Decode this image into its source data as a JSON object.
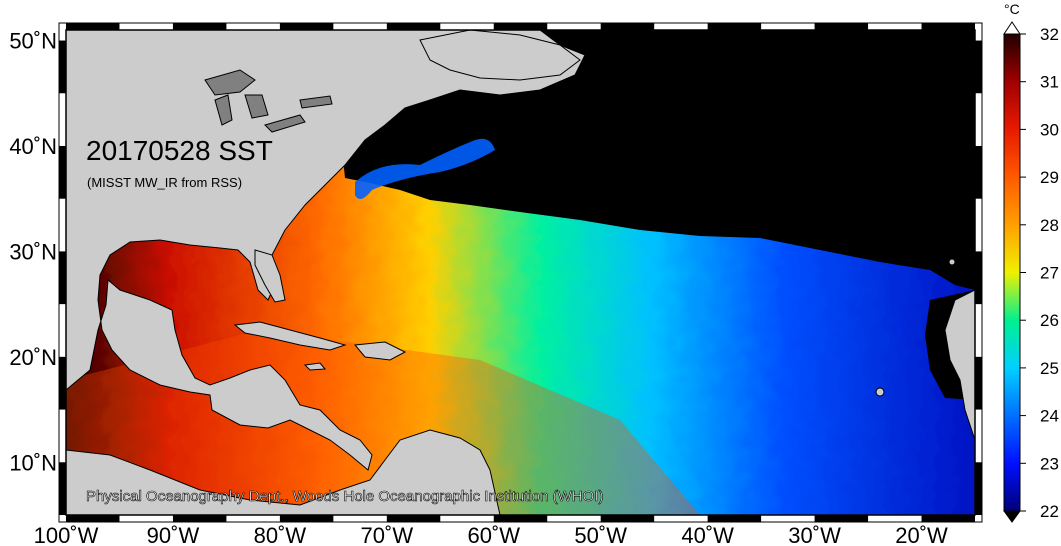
{
  "map": {
    "title": "20170528 SST",
    "subtitle": "(MISST MW_IR from RSS)",
    "credit": "Physical Oceanography Dept., Woods Hole Oceanographic Institution (WHOI)",
    "extent": {
      "lon_min": -100,
      "lon_max": -15,
      "lat_min": 5,
      "lat_max": 51
    },
    "lat_ticks": [
      {
        "value": 10,
        "label": "10˚N"
      },
      {
        "value": 20,
        "label": "20˚N"
      },
      {
        "value": 30,
        "label": "30˚N"
      },
      {
        "value": 40,
        "label": "40˚N"
      },
      {
        "value": 50,
        "label": "50˚N"
      }
    ],
    "lon_ticks": [
      {
        "value": -100,
        "label": "100˚W"
      },
      {
        "value": -90,
        "label": "90˚W"
      },
      {
        "value": -80,
        "label": "80˚W"
      },
      {
        "value": -70,
        "label": "70˚W"
      },
      {
        "value": -60,
        "label": "60˚W"
      },
      {
        "value": -50,
        "label": "50˚W"
      },
      {
        "value": -40,
        "label": "40˚W"
      },
      {
        "value": -30,
        "label": "30˚W"
      },
      {
        "value": -20,
        "label": "20˚W"
      }
    ],
    "colors": {
      "land": "#cccccc",
      "coastline": "#000000",
      "lakes": "#808080",
      "no_data": "#000000",
      "frame": "#000000"
    }
  },
  "colorbar": {
    "unit": "°C",
    "min": 22,
    "max": 32,
    "ticks": [
      {
        "value": 32,
        "label": "32"
      },
      {
        "value": 31,
        "label": "31"
      },
      {
        "value": 30,
        "label": "30"
      },
      {
        "value": 29,
        "label": "29"
      },
      {
        "value": 28,
        "label": "28"
      },
      {
        "value": 27,
        "label": "27"
      },
      {
        "value": 26,
        "label": "26"
      },
      {
        "value": 25,
        "label": "25"
      },
      {
        "value": 24,
        "label": "24"
      },
      {
        "value": 23,
        "label": "23"
      },
      {
        "value": 22,
        "label": "22"
      }
    ],
    "color_stops": [
      {
        "value": 22,
        "color": "#00007a"
      },
      {
        "value": 23,
        "color": "#0010ff"
      },
      {
        "value": 24,
        "color": "#0070ff"
      },
      {
        "value": 25,
        "color": "#00d0ff"
      },
      {
        "value": 26,
        "color": "#00f090"
      },
      {
        "value": 27,
        "color": "#f0f000"
      },
      {
        "value": 28,
        "color": "#ffa000"
      },
      {
        "value": 29,
        "color": "#ff5a00"
      },
      {
        "value": 30,
        "color": "#e81a00"
      },
      {
        "value": 31,
        "color": "#a00000"
      },
      {
        "value": 32,
        "color": "#200000"
      }
    ]
  }
}
